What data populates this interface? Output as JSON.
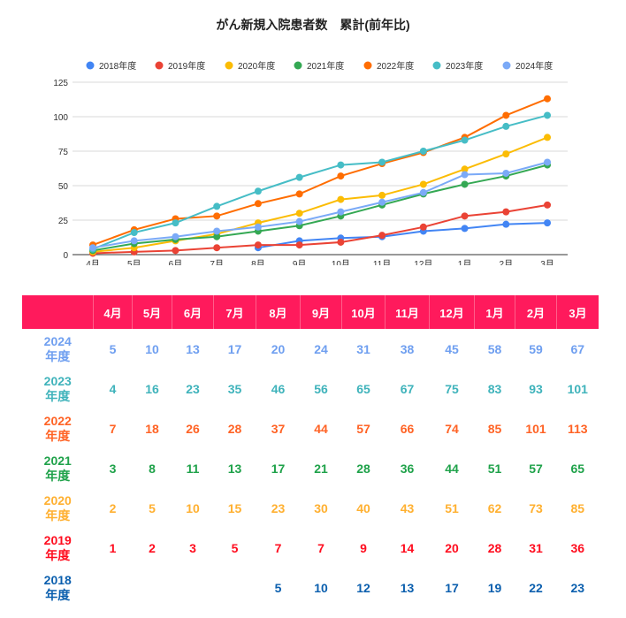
{
  "chart_data": {
    "type": "line",
    "title": "がん新規入院患者数　累計(前年比)",
    "categories": [
      "4月",
      "5月",
      "6月",
      "7月",
      "8月",
      "9月",
      "10月",
      "11月",
      "12月",
      "1月",
      "2月",
      "3月"
    ],
    "ylim": [
      0,
      125
    ],
    "yticks": [
      "0",
      "25",
      "50",
      "75",
      "100",
      "125"
    ],
    "grid": true,
    "legend_position": "top",
    "series": [
      {
        "name": "2018年度",
        "color": "#4285f4",
        "text_color": "#0b5fae",
        "values": [
          null,
          null,
          null,
          null,
          5,
          10,
          12,
          13,
          17,
          19,
          22,
          23
        ]
      },
      {
        "name": "2019年度",
        "color": "#ea4335",
        "text_color": "#ff0d1f",
        "values": [
          1,
          2,
          3,
          5,
          7,
          7,
          9,
          14,
          20,
          28,
          31,
          36
        ]
      },
      {
        "name": "2020年度",
        "color": "#fbbc04",
        "text_color": "#ffb030",
        "values": [
          2,
          5,
          10,
          15,
          23,
          30,
          40,
          43,
          51,
          62,
          73,
          85
        ]
      },
      {
        "name": "2021年度",
        "color": "#34a853",
        "text_color": "#1fa24a",
        "values": [
          3,
          8,
          11,
          13,
          17,
          21,
          28,
          36,
          44,
          51,
          57,
          65
        ]
      },
      {
        "name": "2022年度",
        "color": "#ff6d01",
        "text_color": "#ff6325",
        "values": [
          7,
          18,
          26,
          28,
          37,
          44,
          57,
          66,
          74,
          85,
          101,
          113
        ]
      },
      {
        "name": "2023年度",
        "color": "#46bdc6",
        "text_color": "#3fb3bb",
        "values": [
          4,
          16,
          23,
          35,
          46,
          56,
          65,
          67,
          75,
          83,
          93,
          101
        ]
      },
      {
        "name": "2024年度",
        "color": "#7baaf7",
        "text_color": "#6f9ff0",
        "values": [
          5,
          10,
          13,
          17,
          20,
          24,
          31,
          38,
          45,
          58,
          59,
          67
        ]
      }
    ]
  },
  "table": {
    "row_order": [
      6,
      5,
      4,
      3,
      2,
      1,
      0
    ],
    "row_labels": [
      [
        "2018",
        "年度"
      ],
      [
        "2019",
        "年度"
      ],
      [
        "2020",
        "年度"
      ],
      [
        "2021",
        "年度"
      ],
      [
        "2022",
        "年度"
      ],
      [
        "2023",
        "年度"
      ],
      [
        "2024",
        "年度"
      ]
    ]
  }
}
